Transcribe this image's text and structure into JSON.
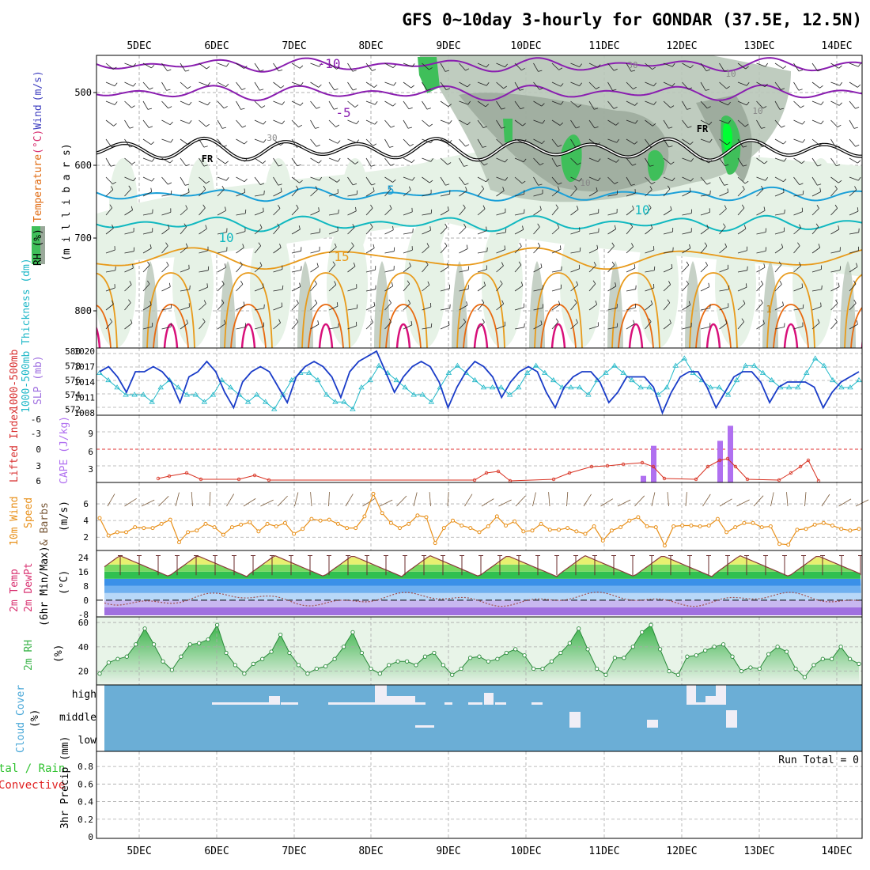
{
  "title": "GFS 0~10day 3-hourly for GONDAR (37.5E, 12.5N)",
  "colors": {
    "rh_dark": "#9aa89a",
    "rh_mid": "#b8c6b8",
    "rh_light": "#e6f2e6",
    "rh_green": "#3fbf5a",
    "rh_bright": "#00ff33",
    "temp_purple": "#8a1eb0",
    "temp_cyan": "#1aa0d8",
    "temp_teal": "#10b8c0",
    "temp_orange": "#e89a1a",
    "temp_orange2": "#e86a10",
    "temp_magenta": "#d8107a",
    "slp": "#1a3cc8",
    "thickness": "#20b8c8",
    "lifted": "#d83020",
    "cape": "#b070f0",
    "wind": "#e8901a",
    "barb": "#7a5a3a",
    "rh2m": "#3cb44b",
    "cloud": "#6baed6",
    "cloud_gap": "#f0eef6"
  },
  "chart_data": [
    {
      "type": "contour",
      "panel": "upper-air",
      "ylabel_parts": [
        "RH (%)",
        "Temperature",
        "(°C)",
        "Wind",
        "(m/s)"
      ],
      "ylabel2": "(m i l l i b a r s)",
      "y_ticks": [
        "500",
        "600",
        "700",
        "800"
      ],
      "x_ticks": [
        "5DEC",
        "6DEC",
        "7DEC",
        "8DEC",
        "9DEC",
        "10DEC",
        "11DEC",
        "12DEC",
        "13DEC",
        "14DEC"
      ],
      "contour_labels": [
        "-10",
        "-5",
        "FR",
        "FR",
        "5",
        "10",
        "10",
        "15",
        "30",
        "30",
        "10",
        "10",
        "10",
        "1"
      ],
      "isotherms": [
        {
          "label": "-10",
          "level_hpa": 462
        },
        {
          "label": "-5",
          "level_hpa": 500
        },
        {
          "label": "FR",
          "level_hpa": 575
        },
        {
          "label": "5",
          "level_hpa": 640
        },
        {
          "label": "10",
          "level_hpa": 680
        },
        {
          "label": "15",
          "level_hpa": 735
        }
      ]
    },
    {
      "type": "line",
      "panel": "slp-thickness",
      "ylabel_left": "1000-500mb Thickness (dm)",
      "ylabel_right": "SLP (mb)",
      "left_ticks": [
        "580",
        "578",
        "576",
        "574",
        "572"
      ],
      "right_ticks": [
        "1020",
        "1017",
        "1014",
        "1011",
        "1008"
      ],
      "series": [
        {
          "name": "SLP (mb)",
          "values": [
            1016,
            1017,
            1015,
            1012,
            1016,
            1016,
            1017,
            1016,
            1014,
            1010,
            1015,
            1016,
            1018,
            1016,
            1012,
            1009,
            1014,
            1016,
            1017,
            1016,
            1013,
            1010,
            1015,
            1017,
            1018,
            1017,
            1015,
            1011,
            1016,
            1018,
            1019,
            1020,
            1016,
            1012,
            1015,
            1017,
            1018,
            1017,
            1014,
            1009,
            1013,
            1016,
            1018,
            1017,
            1015,
            1011,
            1014,
            1016,
            1017,
            1016,
            1012,
            1009,
            1013,
            1015,
            1016,
            1016,
            1014,
            1010,
            1012,
            1015,
            1015,
            1015,
            1013,
            1008,
            1012,
            1015,
            1016,
            1016,
            1013,
            1009,
            1012,
            1015,
            1016,
            1016,
            1014,
            1010,
            1013,
            1014,
            1014,
            1014,
            1013,
            1009,
            1012,
            1014,
            1015,
            1016
          ]
        },
        {
          "name": "1000-500mb Thickness (dm)",
          "values": [
            577,
            576,
            575,
            574,
            574,
            574,
            573,
            575,
            576,
            575,
            574,
            574,
            573,
            574,
            576,
            575,
            574,
            573,
            574,
            573,
            572,
            574,
            576,
            577,
            577,
            576,
            574,
            573,
            573,
            572,
            575,
            576,
            578,
            577,
            576,
            575,
            574,
            574,
            573,
            575,
            577,
            578,
            577,
            576,
            575,
            575,
            575,
            574,
            575,
            577,
            578,
            577,
            576,
            575,
            575,
            575,
            574,
            576,
            577,
            578,
            577,
            576,
            575,
            575,
            574,
            575,
            578,
            579,
            577,
            576,
            575,
            575,
            574,
            576,
            578,
            578,
            577,
            576,
            575,
            575,
            575,
            577,
            579,
            578,
            576,
            575,
            575,
            576
          ]
        }
      ]
    },
    {
      "type": "bar+line",
      "panel": "lifted-cape",
      "ylabel_left": "Lifted Index",
      "ylabel_right": "CAPE (J/kg)",
      "left_ticks": [
        "-6",
        "-3",
        "0",
        "3",
        "6"
      ],
      "right_ticks": [
        "9",
        "6",
        "3"
      ],
      "cape_bars": [
        {
          "date": "11DEC 12Z",
          "value": 1
        },
        {
          "date": "11DEC 15Z",
          "value": 7
        },
        {
          "date": "12DEC 12Z",
          "value": 8
        },
        {
          "date": "12DEC 15Z",
          "value": 11
        }
      ],
      "lifted_index_min": 2.5
    },
    {
      "type": "line",
      "panel": "wind10m",
      "ylabel": "10m Wind Speed & Barbs (m/s)",
      "ylabel_parts": [
        "10m Wind",
        "Speed",
        "& Barbs",
        "(m/s)"
      ],
      "ticks": [
        "2",
        "4",
        "6"
      ],
      "values": [
        4.3,
        2.2,
        2.6,
        2.6,
        3.2,
        3.1,
        3.1,
        3.6,
        4.1,
        1.4,
        2.6,
        2.8,
        3.6,
        3.2,
        2.3,
        3.2,
        3.5,
        3.8,
        2.7,
        3.6,
        3.3,
        3.7,
        2.4,
        3.0,
        4.2,
        4.0,
        4.1,
        3.6,
        3.1,
        3.1,
        4.5,
        7.2,
        4.9,
        3.7,
        3.1,
        3.6,
        4.6,
        4.4,
        1.3,
        3.1,
        4.0,
        3.4,
        3.1,
        2.6,
        3.3,
        4.5,
        3.4,
        3.9,
        2.7,
        2.8,
        3.6,
        2.9,
        2.9,
        3.1,
        2.7,
        2.4,
        3.3,
        1.6,
        2.8,
        3.2,
        4.0,
        4.4,
        3.3,
        3.2,
        1.0,
        3.3,
        3.4,
        3.4,
        3.3,
        3.4,
        4.2,
        2.6,
        3.2,
        3.7,
        3.7,
        3.2,
        3.3,
        1.2,
        1.1,
        2.9,
        3.0,
        3.5,
        3.7,
        3.4,
        3.0,
        2.8,
        3.0
      ]
    },
    {
      "type": "area",
      "panel": "temp2m",
      "ylabel_parts": [
        "2m Temp",
        "2m DewPt",
        "(6hr Min/Max)",
        "(°C)"
      ],
      "ticks": [
        "24",
        "16",
        "8",
        "0",
        "-8"
      ],
      "temperature_max_daily": [
        25,
        25,
        25,
        25,
        25,
        25,
        25,
        25,
        25,
        25
      ],
      "temperature_min_daily": [
        14,
        13,
        13,
        13,
        13,
        13,
        13,
        13,
        13,
        13
      ],
      "dewpoint_range": [
        -3,
        4
      ]
    },
    {
      "type": "area",
      "panel": "rh2m",
      "ylabel": "2m RH (%)",
      "ticks": [
        "60",
        "40",
        "20"
      ],
      "values": [
        18,
        27,
        30,
        32,
        42,
        55,
        42,
        28,
        21,
        32,
        42,
        43,
        46,
        58,
        35,
        25,
        18,
        26,
        30,
        36,
        50,
        35,
        25,
        18,
        22,
        24,
        30,
        40,
        52,
        35,
        22,
        18,
        25,
        28,
        28,
        25,
        32,
        35,
        25,
        17,
        22,
        31,
        32,
        28,
        30,
        35,
        38,
        33,
        22,
        22,
        28,
        35,
        43,
        55,
        38,
        22,
        17,
        31,
        31,
        40,
        52,
        58,
        38,
        20,
        17,
        32,
        33,
        37,
        40,
        42,
        32,
        20,
        23,
        22,
        34,
        40,
        36,
        22,
        15,
        25,
        30,
        30,
        40,
        30,
        26
      ]
    },
    {
      "type": "heatmap",
      "panel": "cloud-cover",
      "ylabel": "Cloud Cover (%)",
      "ticks": [
        "high",
        "middle",
        "low"
      ],
      "layers": [
        "high",
        "middle",
        "low"
      ]
    },
    {
      "type": "bar",
      "panel": "precip",
      "ylabel_parts": [
        "tal / Rain",
        "Convective",
        "3hr Precip (mm)"
      ],
      "ticks": [
        "0.8",
        "0.6",
        "0.4",
        "0.2",
        "0"
      ],
      "run_total_label": "Run Total = 0",
      "values": []
    }
  ]
}
